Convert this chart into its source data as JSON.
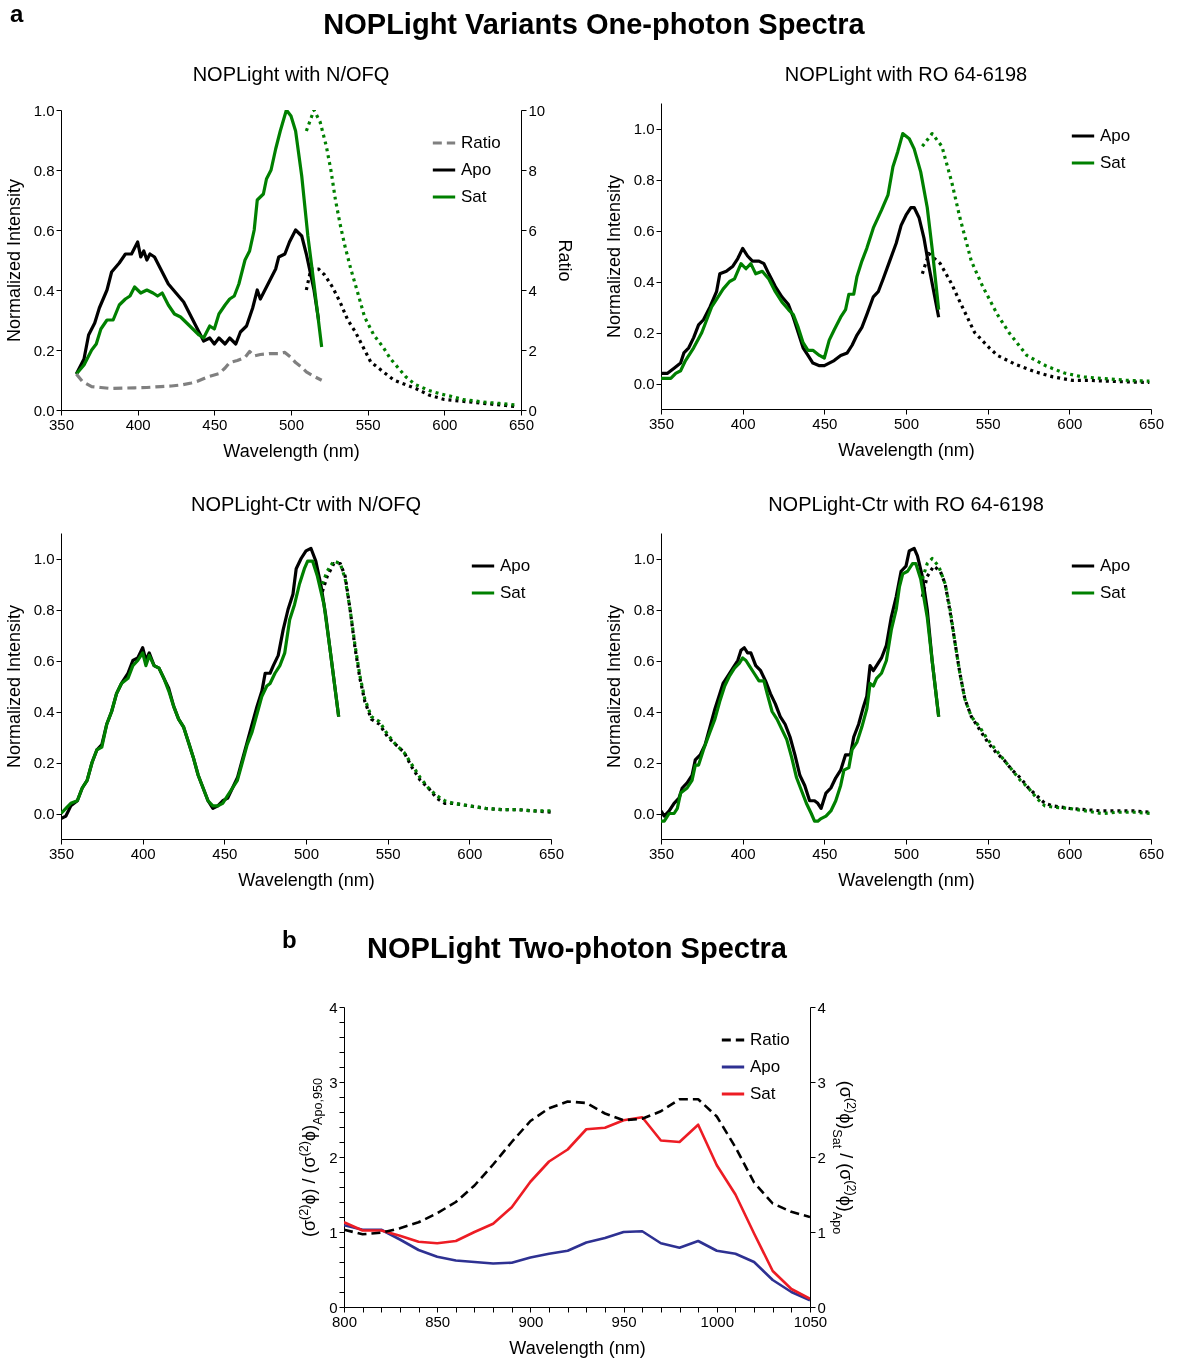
{
  "chart_data": [
    {
      "type": "line",
      "title": "NOPLight with N/OFQ",
      "xlabel": "Wavelength (nm)",
      "ylabel": "Normalized Intensity",
      "y2label": "Ratio",
      "annotations": [
        "a",
        "NOPLight Variants One-photon Spectra"
      ],
      "xlim": [
        350,
        650
      ],
      "xticks": [
        350,
        400,
        450,
        500,
        550,
        600,
        650
      ],
      "ylim": [
        0,
        1
      ],
      "yticks": [
        {
          "value": 0,
          "label": "0.0"
        },
        0.2,
        0.4,
        0.6,
        0.8,
        {
          "value": 1,
          "label": "1.0"
        }
      ],
      "y2lim": [
        0,
        10
      ],
      "y2ticks": [
        0,
        2,
        4,
        6,
        8,
        10
      ],
      "legend": "top right",
      "series": [
        {
          "name": "Ratio",
          "color": "#808080",
          "axis": "y2",
          "line_style": "dashed",
          "x": [
            360,
            364,
            370,
            376,
            382,
            390,
            398,
            406,
            415,
            422,
            429,
            435,
            439,
            446,
            453,
            457,
            460,
            465,
            470,
            473,
            476,
            480,
            486,
            492,
            496,
            500,
            503,
            507,
            510,
            515,
            520
          ],
          "values": [
            1.2,
            0.95,
            0.78,
            0.75,
            0.72,
            0.73,
            0.74,
            0.75,
            0.78,
            0.8,
            0.84,
            0.9,
            0.96,
            1.11,
            1.21,
            1.4,
            1.58,
            1.65,
            1.75,
            1.95,
            1.8,
            1.85,
            1.88,
            1.88,
            1.92,
            1.75,
            1.58,
            1.42,
            1.27,
            1.12,
            0.99
          ]
        },
        {
          "name": "Apo",
          "color": "#000000",
          "line_style": "solid",
          "x": [
            360,
            365,
            368,
            372,
            375,
            380,
            383,
            388,
            392,
            396,
            400,
            402,
            404,
            406,
            408,
            411,
            415,
            420,
            425,
            430,
            435,
            440,
            443,
            447,
            450,
            453,
            457,
            460,
            464,
            467,
            471,
            475,
            478,
            480,
            485,
            490,
            492,
            496,
            499,
            503,
            507,
            510,
            515,
            518
          ],
          "values": [
            0.12,
            0.17,
            0.25,
            0.29,
            0.34,
            0.4,
            0.46,
            0.49,
            0.52,
            0.52,
            0.56,
            0.51,
            0.53,
            0.5,
            0.52,
            0.51,
            0.47,
            0.42,
            0.39,
            0.36,
            0.31,
            0.26,
            0.23,
            0.24,
            0.22,
            0.24,
            0.22,
            0.24,
            0.22,
            0.26,
            0.28,
            0.34,
            0.4,
            0.37,
            0.42,
            0.47,
            0.51,
            0.52,
            0.56,
            0.6,
            0.58,
            0.52,
            0.4,
            0.3
          ]
        },
        {
          "color": "#000000",
          "line_style": "dotted",
          "x": [
            510,
            513,
            518,
            522,
            527,
            532,
            537,
            542,
            547,
            552,
            557,
            562,
            567,
            572,
            577,
            582,
            590,
            600,
            610,
            620,
            630,
            640,
            648
          ],
          "values": [
            0.4,
            0.47,
            0.47,
            0.45,
            0.41,
            0.36,
            0.3,
            0.26,
            0.21,
            0.16,
            0.14,
            0.12,
            0.1,
            0.09,
            0.08,
            0.07,
            0.05,
            0.035,
            0.03,
            0.025,
            0.02,
            0.015,
            0.01
          ]
        },
        {
          "name": "Sat",
          "color": "#008000",
          "line_style": "solid",
          "x": [
            360,
            365,
            370,
            373,
            376,
            380,
            384,
            388,
            392,
            395,
            398,
            402,
            406,
            410,
            413,
            416,
            420,
            424,
            428,
            432,
            436,
            440,
            443,
            447,
            450,
            453,
            457,
            460,
            463,
            466,
            470,
            473,
            476,
            478,
            482,
            484,
            487,
            490,
            493,
            497,
            500,
            503,
            507,
            511,
            515,
            520
          ],
          "values": [
            0.12,
            0.15,
            0.2,
            0.22,
            0.27,
            0.3,
            0.3,
            0.35,
            0.37,
            0.38,
            0.41,
            0.39,
            0.4,
            0.39,
            0.38,
            0.39,
            0.35,
            0.32,
            0.31,
            0.29,
            0.27,
            0.25,
            0.24,
            0.28,
            0.27,
            0.32,
            0.35,
            0.37,
            0.38,
            0.42,
            0.5,
            0.53,
            0.6,
            0.7,
            0.72,
            0.77,
            0.8,
            0.87,
            0.93,
            1,
            0.98,
            0.93,
            0.78,
            0.58,
            0.42,
            0.21
          ]
        },
        {
          "color": "#008000",
          "line_style": "dotted",
          "x": [
            510,
            515,
            519,
            523,
            526,
            529,
            532,
            535,
            539,
            543,
            548,
            554,
            560,
            565,
            570,
            575,
            581,
            590,
            598,
            605,
            612,
            620,
            628,
            636,
            648
          ],
          "values": [
            0.93,
            1,
            0.96,
            0.88,
            0.8,
            0.7,
            0.62,
            0.55,
            0.47,
            0.4,
            0.31,
            0.25,
            0.21,
            0.17,
            0.14,
            0.11,
            0.085,
            0.065,
            0.053,
            0.045,
            0.035,
            0.03,
            0.025,
            0.022,
            0.016
          ]
        }
      ]
    },
    {
      "type": "line",
      "title": "NOPLight with RO 64-6198",
      "xlabel": "Wavelength (nm)",
      "ylabel": "Normalized Intensity",
      "xlim": [
        350,
        650
      ],
      "xticks": [
        350,
        400,
        450,
        500,
        550,
        600,
        650
      ],
      "ylim": [
        -0.1,
        1.1
      ],
      "yticks": [
        {
          "value": 0,
          "label": "0.0"
        },
        0.2,
        0.4,
        0.6,
        0.8,
        {
          "value": 1,
          "label": "1.0"
        }
      ],
      "legend": "top right",
      "series": [
        {
          "name": "Apo",
          "color": "#000000",
          "line_style": "solid",
          "x": [
            350,
            354,
            358,
            362,
            364,
            367,
            370,
            373,
            376,
            380,
            384,
            386,
            390,
            394,
            397,
            400,
            403,
            406,
            410,
            413,
            416,
            420,
            424,
            428,
            431,
            434,
            437,
            440,
            443,
            447,
            450,
            453,
            456,
            460,
            464,
            467,
            470,
            473,
            476,
            480,
            483,
            486,
            490,
            494,
            497,
            500,
            503,
            505,
            508,
            511,
            514,
            517,
            520
          ],
          "values": [
            0.04,
            0.04,
            0.06,
            0.08,
            0.12,
            0.14,
            0.18,
            0.23,
            0.25,
            0.3,
            0.36,
            0.43,
            0.44,
            0.46,
            0.49,
            0.53,
            0.5,
            0.48,
            0.48,
            0.47,
            0.43,
            0.38,
            0.34,
            0.31,
            0.26,
            0.2,
            0.14,
            0.11,
            0.08,
            0.07,
            0.07,
            0.08,
            0.09,
            0.11,
            0.12,
            0.15,
            0.19,
            0.22,
            0.27,
            0.34,
            0.36,
            0.41,
            0.48,
            0.55,
            0.62,
            0.66,
            0.69,
            0.69,
            0.65,
            0.57,
            0.46,
            0.36,
            0.26
          ]
        },
        {
          "color": "#000000",
          "line_style": "dotted",
          "x": [
            510,
            514,
            521,
            528,
            533,
            542,
            551,
            556,
            567,
            579,
            590,
            602,
            613,
            624,
            636,
            649
          ],
          "values": [
            0.43,
            0.51,
            0.47,
            0.39,
            0.32,
            0.2,
            0.14,
            0.11,
            0.075,
            0.046,
            0.026,
            0.012,
            0.012,
            0.009,
            0.006,
            0.004
          ]
        },
        {
          "name": "Sat",
          "color": "#008000",
          "line_style": "solid",
          "x": [
            350,
            356,
            359,
            362,
            365,
            370,
            375,
            378,
            381,
            384,
            388,
            392,
            395,
            399,
            402,
            405,
            408,
            412,
            416,
            420,
            424,
            428,
            431,
            434,
            437,
            440,
            443,
            447,
            450,
            453,
            456,
            460,
            463,
            465,
            468,
            470,
            473,
            476,
            480,
            485,
            489,
            492,
            495,
            498,
            502,
            505,
            509,
            513,
            516,
            520
          ],
          "values": [
            0.02,
            0.02,
            0.04,
            0.05,
            0.09,
            0.14,
            0.2,
            0.25,
            0.3,
            0.33,
            0.37,
            0.4,
            0.41,
            0.47,
            0.45,
            0.47,
            0.43,
            0.44,
            0.41,
            0.36,
            0.32,
            0.29,
            0.27,
            0.22,
            0.16,
            0.13,
            0.13,
            0.11,
            0.1,
            0.17,
            0.21,
            0.26,
            0.29,
            0.35,
            0.35,
            0.42,
            0.48,
            0.53,
            0.61,
            0.68,
            0.74,
            0.85,
            0.91,
            0.98,
            0.96,
            0.92,
            0.83,
            0.69,
            0.53,
            0.29
          ]
        },
        {
          "color": "#008000",
          "line_style": "dotted",
          "x": [
            510,
            516,
            522,
            528,
            533,
            540,
            547,
            556,
            563,
            574,
            586,
            597,
            608,
            620,
            636,
            649
          ],
          "values": [
            0.93,
            0.98,
            0.93,
            0.79,
            0.65,
            0.48,
            0.38,
            0.27,
            0.2,
            0.11,
            0.068,
            0.041,
            0.026,
            0.02,
            0.012,
            0.009
          ]
        }
      ]
    },
    {
      "type": "line",
      "title": "NOPLight-Ctr with N/OFQ",
      "xlabel": "Wavelength (nm)",
      "ylabel": "Normalized Intensity",
      "xlim": [
        350,
        650
      ],
      "xticks": [
        350,
        400,
        450,
        500,
        550,
        600,
        650
      ],
      "ylim": [
        -0.1,
        1.1
      ],
      "yticks": [
        {
          "value": 0,
          "label": "0.0"
        },
        0.2,
        0.4,
        0.6,
        0.8,
        {
          "value": 1,
          "label": "1.0"
        }
      ],
      "legend": "top right",
      "series": [
        {
          "name": "Apo",
          "color": "#000000",
          "line_style": "solid",
          "x": [
            350,
            353,
            356,
            360,
            363,
            366,
            369,
            372,
            375,
            378,
            381,
            384,
            387,
            391,
            394,
            397,
            400,
            402,
            404,
            407,
            410,
            413,
            416,
            419,
            422,
            425,
            428,
            431,
            434,
            437,
            440,
            443,
            446,
            449,
            452,
            455,
            458,
            461,
            464,
            467,
            470,
            473,
            475,
            478,
            480,
            483,
            486,
            489,
            492,
            494,
            497,
            500,
            503,
            506,
            509,
            512,
            516,
            520
          ],
          "values": [
            -0.02,
            -0.01,
            0.03,
            0.05,
            0.1,
            0.13,
            0.2,
            0.25,
            0.27,
            0.35,
            0.4,
            0.47,
            0.51,
            0.55,
            0.6,
            0.61,
            0.65,
            0.6,
            0.63,
            0.58,
            0.57,
            0.53,
            0.49,
            0.42,
            0.37,
            0.34,
            0.28,
            0.22,
            0.15,
            0.1,
            0.05,
            0.02,
            0.03,
            0.05,
            0.06,
            0.1,
            0.14,
            0.21,
            0.28,
            0.35,
            0.42,
            0.48,
            0.55,
            0.55,
            0.58,
            0.62,
            0.72,
            0.8,
            0.86,
            0.96,
            1,
            1.03,
            1.04,
            0.99,
            0.9,
            0.78,
            0.58,
            0.38
          ]
        },
        {
          "color": "#000000",
          "line_style": "dotted",
          "x": [
            510,
            513,
            517,
            521,
            524,
            527,
            530,
            533,
            536,
            540,
            545,
            550,
            555,
            560,
            565,
            570,
            575,
            580,
            585,
            590,
            600,
            610,
            620,
            630,
            640,
            650
          ],
          "values": [
            0.87,
            0.93,
            0.98,
            0.98,
            0.93,
            0.8,
            0.65,
            0.53,
            0.44,
            0.37,
            0.35,
            0.3,
            0.27,
            0.24,
            0.18,
            0.13,
            0.1,
            0.06,
            0.04,
            0.04,
            0.03,
            0.02,
            0.015,
            0.015,
            0.01,
            0.005
          ]
        },
        {
          "name": "Sat",
          "color": "#008000",
          "line_style": "solid",
          "x": [
            350,
            353,
            356,
            360,
            363,
            366,
            369,
            372,
            375,
            378,
            381,
            384,
            387,
            391,
            394,
            397,
            400,
            402,
            404,
            407,
            410,
            413,
            416,
            419,
            422,
            425,
            428,
            431,
            434,
            437,
            440,
            443,
            446,
            449,
            452,
            455,
            458,
            461,
            464,
            467,
            470,
            473,
            476,
            478,
            481,
            484,
            487,
            490,
            493,
            496,
            499,
            501,
            504,
            507,
            511,
            515,
            520
          ],
          "values": [
            0,
            0.02,
            0.04,
            0.05,
            0.1,
            0.13,
            0.2,
            0.25,
            0.26,
            0.35,
            0.4,
            0.47,
            0.51,
            0.53,
            0.58,
            0.6,
            0.63,
            0.58,
            0.62,
            0.58,
            0.57,
            0.53,
            0.48,
            0.42,
            0.37,
            0.34,
            0.28,
            0.22,
            0.15,
            0.1,
            0.05,
            0.03,
            0.03,
            0.04,
            0.07,
            0.1,
            0.13,
            0.2,
            0.27,
            0.32,
            0.39,
            0.46,
            0.5,
            0.51,
            0.55,
            0.58,
            0.63,
            0.76,
            0.82,
            0.9,
            0.96,
            0.99,
            0.99,
            0.93,
            0.82,
            0.63,
            0.38
          ]
        },
        {
          "color": "#008000",
          "line_style": "dotted",
          "x": [
            510,
            513,
            517,
            521,
            524,
            527,
            530,
            533,
            536,
            540,
            545,
            550,
            555,
            560,
            565,
            570,
            575,
            580,
            585,
            590,
            600,
            610,
            620,
            630,
            640,
            650
          ],
          "values": [
            0.9,
            0.95,
            0.99,
            0.98,
            0.92,
            0.8,
            0.66,
            0.54,
            0.45,
            0.38,
            0.36,
            0.31,
            0.27,
            0.24,
            0.19,
            0.14,
            0.1,
            0.07,
            0.05,
            0.04,
            0.03,
            0.02,
            0.015,
            0.015,
            0.01,
            0.01
          ]
        }
      ]
    },
    {
      "type": "line",
      "title": "NOPLight-Ctr with RO 64-6198",
      "xlabel": "Wavelength (nm)",
      "ylabel": "Normalized Intensity",
      "xlim": [
        350,
        650
      ],
      "xticks": [
        350,
        400,
        450,
        500,
        550,
        600,
        650
      ],
      "ylim": [
        -0.1,
        1.1
      ],
      "yticks": [
        {
          "value": 0,
          "label": "0.0"
        },
        0.2,
        0.4,
        0.6,
        0.8,
        {
          "value": 1,
          "label": "1.0"
        }
      ],
      "legend": "top right",
      "series": [
        {
          "name": "Apo",
          "color": "#000000",
          "line_style": "solid",
          "x": [
            350,
            352,
            355,
            358,
            361,
            363,
            366,
            369,
            371,
            374,
            377,
            380,
            383,
            386,
            388,
            391,
            394,
            397,
            399,
            401,
            403,
            405,
            408,
            411,
            414,
            417,
            420,
            423,
            426,
            429,
            432,
            435,
            438,
            441,
            444,
            446,
            448,
            451,
            454,
            457,
            460,
            463,
            466,
            468,
            471,
            474,
            476,
            478,
            480,
            482,
            485,
            488,
            491,
            494,
            497,
            500,
            502,
            505,
            507,
            510,
            513,
            516,
            520
          ],
          "values": [
            0.01,
            -0.01,
            0.01,
            0.04,
            0.06,
            0.1,
            0.12,
            0.15,
            0.21,
            0.23,
            0.27,
            0.34,
            0.41,
            0.47,
            0.51,
            0.54,
            0.57,
            0.6,
            0.64,
            0.65,
            0.63,
            0.63,
            0.58,
            0.56,
            0.52,
            0.47,
            0.43,
            0.38,
            0.35,
            0.3,
            0.23,
            0.15,
            0.11,
            0.05,
            0.05,
            0.04,
            0.02,
            0.08,
            0.1,
            0.14,
            0.17,
            0.23,
            0.23,
            0.3,
            0.35,
            0.42,
            0.46,
            0.58,
            0.56,
            0.58,
            0.61,
            0.66,
            0.77,
            0.85,
            0.95,
            0.97,
            1.03,
            1.04,
            1.01,
            0.93,
            0.8,
            0.6,
            0.38
          ]
        },
        {
          "color": "#000000",
          "line_style": "dotted",
          "x": [
            510,
            513,
            517,
            521,
            524,
            527,
            530,
            533,
            536,
            540,
            545,
            550,
            555,
            560,
            565,
            570,
            575,
            580,
            585,
            590,
            600,
            610,
            620,
            630,
            640,
            650
          ],
          "values": [
            0.85,
            0.93,
            0.97,
            0.95,
            0.9,
            0.79,
            0.67,
            0.55,
            0.45,
            0.38,
            0.33,
            0.28,
            0.24,
            0.21,
            0.17,
            0.14,
            0.1,
            0.07,
            0.04,
            0.03,
            0.02,
            0.015,
            0.01,
            0.01,
            0.01,
            0.005
          ]
        },
        {
          "name": "Sat",
          "color": "#008000",
          "line_style": "solid",
          "x": [
            350,
            352,
            355,
            358,
            360,
            362,
            366,
            369,
            371,
            373,
            376,
            380,
            383,
            386,
            389,
            392,
            395,
            398,
            400,
            402,
            404,
            407,
            410,
            413,
            415,
            418,
            421,
            424,
            427,
            430,
            433,
            436,
            439,
            442,
            444,
            446,
            448,
            451,
            454,
            457,
            460,
            462,
            465,
            467,
            470,
            473,
            476,
            478,
            480,
            482,
            485,
            488,
            491,
            494,
            496,
            498,
            501,
            504,
            506,
            509,
            513,
            516,
            520
          ],
          "values": [
            -0.03,
            -0.03,
            0,
            0,
            0.02,
            0.08,
            0.1,
            0.13,
            0.19,
            0.19,
            0.25,
            0.32,
            0.37,
            0.44,
            0.5,
            0.54,
            0.57,
            0.59,
            0.61,
            0.6,
            0.58,
            0.55,
            0.52,
            0.52,
            0.47,
            0.4,
            0.37,
            0.33,
            0.29,
            0.22,
            0.14,
            0.09,
            0.04,
            0,
            -0.03,
            -0.03,
            -0.02,
            -0.01,
            0.01,
            0.05,
            0.11,
            0.17,
            0.18,
            0.25,
            0.28,
            0.34,
            0.41,
            0.51,
            0.5,
            0.53,
            0.55,
            0.6,
            0.72,
            0.8,
            0.89,
            0.94,
            0.95,
            0.98,
            0.98,
            0.92,
            0.77,
            0.6,
            0.38
          ]
        },
        {
          "color": "#008000",
          "line_style": "dotted",
          "x": [
            510,
            513,
            516,
            520,
            524,
            527,
            530,
            533,
            536,
            540,
            545,
            550,
            555,
            560,
            565,
            570,
            575,
            580,
            585,
            590,
            600,
            610,
            620,
            630,
            640,
            650
          ],
          "values": [
            0.92,
            0.98,
            1,
            0.97,
            0.9,
            0.8,
            0.67,
            0.55,
            0.45,
            0.38,
            0.34,
            0.29,
            0.25,
            0.21,
            0.17,
            0.13,
            0.1,
            0.06,
            0.03,
            0.025,
            0.02,
            0.01,
            0,
            0.005,
            0.005,
            0
          ]
        }
      ]
    },
    {
      "type": "line",
      "title": "NOPLight Two-photon Spectra",
      "xlabel": "Wavelength (nm)",
      "ylabel": "(σ$^{(2)}$ϕ) / (σ$^{(2)}$ϕ)$_{Apo,950}$",
      "y2label": "(σ$^{(2)}$ϕ)$_{Sat}$ / (σ$^{(2)}$ϕ)$_{Apo}$",
      "annotations": [
        "b"
      ],
      "xlim": [
        800,
        1050
      ],
      "xticks": [
        800,
        {
          "value": 810,
          "label": null
        },
        {
          "value": 820,
          "label": null
        },
        {
          "value": 830,
          "label": null
        },
        {
          "value": 840,
          "label": null
        },
        850,
        {
          "value": 860,
          "label": null
        },
        {
          "value": 870,
          "label": null
        },
        {
          "value": 880,
          "label": null
        },
        {
          "value": 890,
          "label": null
        },
        900,
        {
          "value": 910,
          "label": null
        },
        {
          "value": 920,
          "label": null
        },
        {
          "value": 930,
          "label": null
        },
        {
          "value": 940,
          "label": null
        },
        950,
        {
          "value": 960,
          "label": null
        },
        {
          "value": 970,
          "label": null
        },
        {
          "value": 980,
          "label": null
        },
        {
          "value": 990,
          "label": null
        },
        1000,
        {
          "value": 1010,
          "label": null
        },
        {
          "value": 1020,
          "label": null
        },
        {
          "value": 1030,
          "label": null
        },
        {
          "value": 1040,
          "label": null
        },
        1050
      ],
      "ylim": [
        0,
        4
      ],
      "yticks": [
        0,
        {
          "value": 0.2,
          "label": null
        },
        {
          "value": 0.4,
          "label": null
        },
        {
          "value": 0.6,
          "label": null
        },
        {
          "value": 0.8,
          "label": null
        },
        1,
        {
          "value": 1.2,
          "label": null
        },
        {
          "value": 1.4,
          "label": null
        },
        {
          "value": 1.6,
          "label": null
        },
        {
          "value": 1.8,
          "label": null
        },
        2,
        {
          "value": 2.2,
          "label": null
        },
        {
          "value": 2.4,
          "label": null
        },
        {
          "value": 2.6,
          "label": null
        },
        {
          "value": 2.8,
          "label": null
        },
        3,
        {
          "value": 3.2,
          "label": null
        },
        {
          "value": 3.4,
          "label": null
        },
        {
          "value": 3.6,
          "label": null
        },
        {
          "value": 3.8,
          "label": null
        },
        4
      ],
      "y2lim": [
        0,
        4
      ],
      "y2ticks": [
        0,
        1,
        2,
        3,
        4
      ],
      "legend": "top right",
      "x": [
        800,
        810,
        820,
        830,
        840,
        850,
        860,
        870,
        880,
        890,
        900,
        910,
        920,
        930,
        940,
        950,
        960,
        970,
        980,
        990,
        1000,
        1010,
        1020,
        1030,
        1040,
        1050
      ],
      "series": [
        {
          "name": "Ratio",
          "color": "#000000",
          "axis": "y2",
          "line_style": "dashed",
          "values": [
            1.03,
            0.97,
            0.99,
            1.05,
            1.13,
            1.25,
            1.4,
            1.62,
            1.9,
            2.2,
            2.48,
            2.65,
            2.74,
            2.72,
            2.58,
            2.49,
            2.51,
            2.61,
            2.77,
            2.77,
            2.54,
            2.13,
            1.66,
            1.38,
            1.27,
            1.2
          ]
        },
        {
          "name": "Apo",
          "color": "#2e3192",
          "line_style": "solid",
          "values": [
            1.09,
            1.03,
            1.03,
            0.9,
            0.76,
            0.67,
            0.62,
            0.6,
            0.58,
            0.59,
            0.66,
            0.71,
            0.75,
            0.86,
            0.92,
            1,
            1.01,
            0.85,
            0.79,
            0.88,
            0.75,
            0.71,
            0.6,
            0.36,
            0.2,
            0.09
          ]
        },
        {
          "name": "Sat",
          "color": "#ed1c24",
          "line_style": "solid",
          "values": [
            1.13,
            1.02,
            1.02,
            0.95,
            0.87,
            0.85,
            0.88,
            1,
            1.11,
            1.33,
            1.67,
            1.94,
            2.1,
            2.37,
            2.39,
            2.49,
            2.53,
            2.22,
            2.2,
            2.43,
            1.89,
            1.5,
            0.98,
            0.48,
            0.24,
            0.11
          ]
        }
      ]
    }
  ]
}
